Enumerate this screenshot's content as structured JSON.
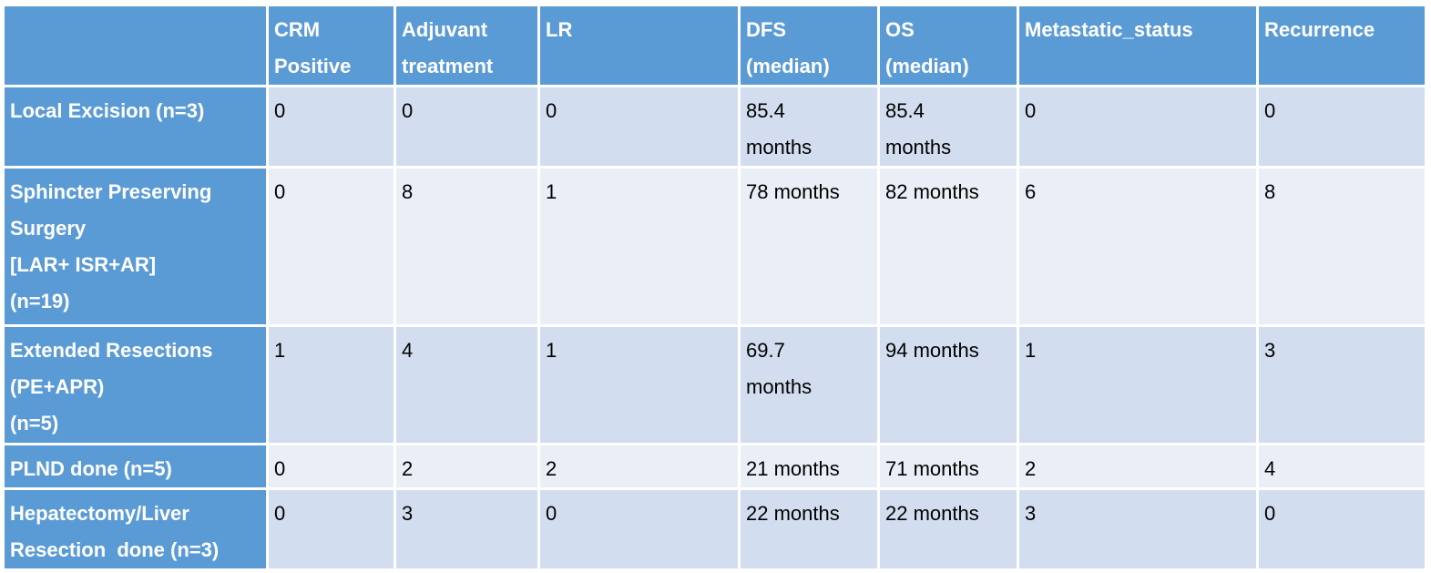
{
  "table": {
    "header": [
      [
        "CRM",
        "Positive"
      ],
      [
        "Adjuvant",
        "treatment"
      ],
      [
        "LR"
      ],
      [
        "DFS",
        "(median)"
      ],
      [
        "OS",
        "(median)"
      ],
      [
        "Metastatic_status"
      ],
      [
        "Recurrence"
      ]
    ],
    "rows": [
      {
        "label": [
          "Local Excision (n=3)"
        ],
        "cells": [
          [
            "0"
          ],
          [
            "0"
          ],
          [
            "0"
          ],
          [
            "85.4",
            "months"
          ],
          [
            "85.4",
            "months"
          ],
          [
            "0"
          ],
          [
            "0"
          ]
        ]
      },
      {
        "label": [
          "Sphincter Preserving",
          "Surgery",
          "[LAR+ ISR+AR]",
          "(n=19)"
        ],
        "cells": [
          [
            "0"
          ],
          [
            "8"
          ],
          [
            "1"
          ],
          [
            "78 months"
          ],
          [
            "82 months"
          ],
          [
            "6"
          ],
          [
            "8"
          ]
        ]
      },
      {
        "label": [
          "Extended Resections",
          "(PE+APR)",
          "(n=5)"
        ],
        "cells": [
          [
            "1"
          ],
          [
            "4"
          ],
          [
            "1"
          ],
          [
            "69.7",
            "months"
          ],
          [
            "94 months"
          ],
          [
            "1"
          ],
          [
            "3"
          ]
        ]
      },
      {
        "label": [
          "PLND done (n=5)"
        ],
        "cells": [
          [
            "0"
          ],
          [
            "2"
          ],
          [
            "2"
          ],
          [
            "21 months"
          ],
          [
            "71 months"
          ],
          [
            "2"
          ],
          [
            "4"
          ]
        ]
      },
      {
        "label": [
          "Hepatectomy/Liver",
          "Resection  done (n=3)"
        ],
        "cells": [
          [
            "0"
          ],
          [
            "3"
          ],
          [
            "0"
          ],
          [
            "22 months"
          ],
          [
            "22 months"
          ],
          [
            "3"
          ],
          [
            "0"
          ]
        ]
      }
    ]
  }
}
